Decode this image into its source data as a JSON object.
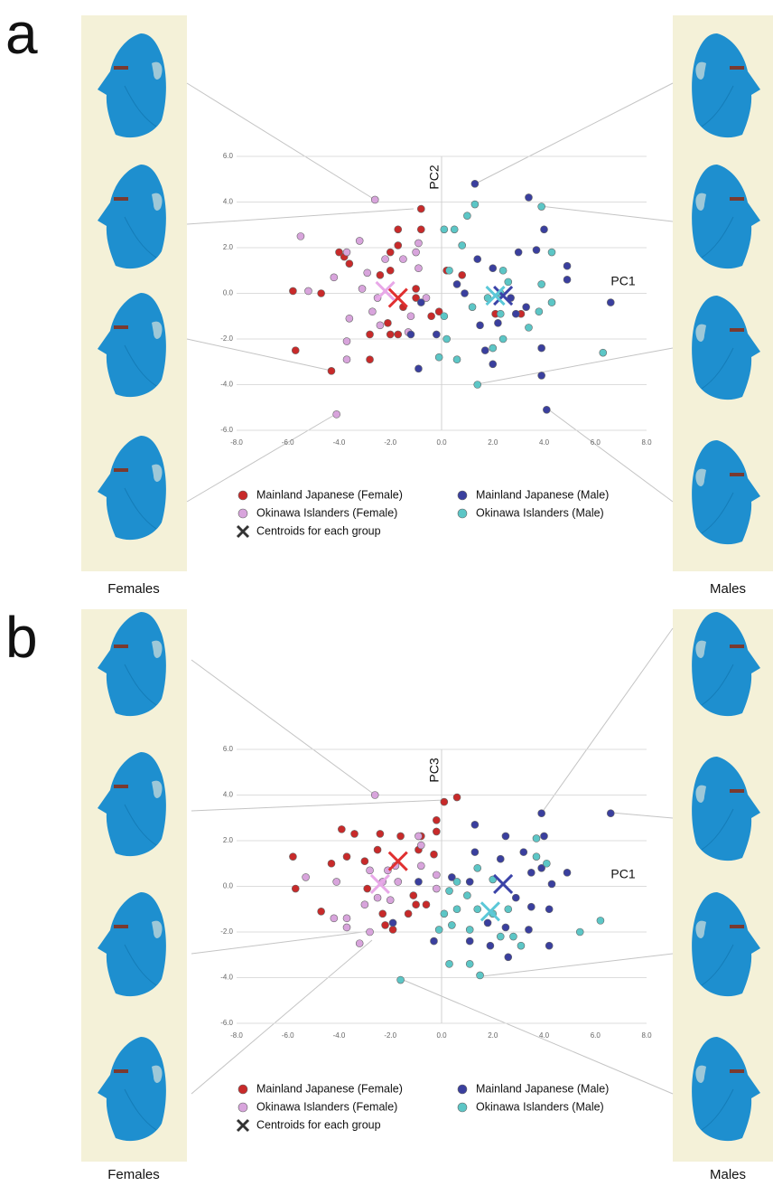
{
  "chart_data": [
    {
      "type": "scatter",
      "panel_label": "a",
      "left_label": "Females",
      "right_label": "Males",
      "x_label": "PC1",
      "y_label": "PC2",
      "xlim": [
        -8,
        8
      ],
      "ylim": [
        -6,
        6
      ],
      "grid": true,
      "xticks": [
        {
          "value": -8,
          "label": "-8.0"
        },
        {
          "value": -6,
          "label": "-6.0"
        },
        {
          "value": -4,
          "label": "-4.0"
        },
        {
          "value": -2,
          "label": "-2.0"
        },
        {
          "value": 0,
          "label": "0.0"
        },
        {
          "value": 2,
          "label": "2.0"
        },
        {
          "value": 4,
          "label": "4.0"
        },
        {
          "value": 6,
          "label": "6.0"
        },
        {
          "value": 8,
          "label": "8.0"
        }
      ],
      "yticks": [
        {
          "value": 6,
          "label": "6.0"
        },
        {
          "value": 4,
          "label": "4.0"
        },
        {
          "value": 2,
          "label": "2.0"
        },
        {
          "value": 0,
          "label": "0.0"
        },
        {
          "value": -2,
          "label": "-2.0"
        },
        {
          "value": -4,
          "label": "-4.0"
        },
        {
          "value": -6,
          "label": "-6.0"
        }
      ],
      "series": [
        {
          "name": "Mainland Japanese (Female)",
          "color": "#c82a2a",
          "marker": "circle",
          "x": [
            -0.8,
            -1.7,
            -0.8,
            -4.0,
            -3.8,
            -3.6,
            -2.0,
            -1.7,
            -2.0,
            -2.4,
            -5.8,
            -4.7,
            0.2,
            0.8,
            -0.1,
            -0.4,
            -1.0,
            -1.5,
            -2.1,
            -2.0,
            -1.7,
            -2.8,
            -2.8,
            -5.7,
            -4.3,
            2.1,
            3.1,
            -1.0
          ],
          "y": [
            3.7,
            2.8,
            2.8,
            1.8,
            1.6,
            1.3,
            1.8,
            2.1,
            1.0,
            0.8,
            0.1,
            0.0,
            1.0,
            0.8,
            -0.8,
            -1.0,
            -0.2,
            -0.6,
            -1.3,
            -1.8,
            -1.8,
            -1.8,
            -2.9,
            -2.5,
            -3.4,
            -0.9,
            -0.9,
            0.2
          ]
        },
        {
          "name": "Okinawa Islanders (Female)",
          "color": "#d8a4dc",
          "marker": "circle",
          "x": [
            -2.6,
            -5.5,
            -3.7,
            -3.2,
            -4.2,
            -5.2,
            -2.9,
            -2.2,
            -1.5,
            -0.9,
            -1.0,
            -0.9,
            -2.5,
            -2.7,
            -2.4,
            -3.6,
            -3.7,
            -3.7,
            -4.1,
            -1.2,
            -0.6,
            -1.3,
            -3.1
          ],
          "y": [
            4.1,
            2.5,
            1.8,
            2.3,
            0.7,
            0.1,
            0.9,
            1.5,
            1.5,
            1.1,
            1.8,
            2.2,
            -0.2,
            -0.8,
            -1.4,
            -1.1,
            -2.1,
            -2.9,
            -5.3,
            -1.0,
            -0.2,
            -1.7,
            0.2
          ]
        },
        {
          "name": "Mainland Japanese (Male)",
          "color": "#3a3f9e",
          "marker": "circle",
          "x": [
            1.3,
            3.4,
            4.0,
            3.7,
            3.0,
            1.4,
            2.0,
            0.6,
            4.9,
            4.9,
            6.6,
            3.3,
            2.7,
            2.9,
            2.2,
            1.5,
            -0.8,
            -0.2,
            -0.9,
            1.7,
            2.0,
            3.9,
            3.9,
            4.1,
            -1.2,
            0.9
          ],
          "y": [
            4.8,
            4.2,
            2.8,
            1.9,
            1.8,
            1.5,
            1.1,
            0.4,
            1.2,
            0.6,
            -0.4,
            -0.6,
            -0.2,
            -0.9,
            -1.3,
            -1.4,
            -0.4,
            -1.8,
            -3.3,
            -2.5,
            -3.1,
            -2.4,
            -3.6,
            -5.1,
            -1.8,
            0.0
          ]
        },
        {
          "name": "Okinawa Islanders (Male)",
          "color": "#5cc6c6",
          "marker": "circle",
          "x": [
            1.3,
            0.5,
            1.0,
            0.1,
            3.9,
            0.8,
            4.3,
            2.4,
            2.6,
            3.9,
            2.3,
            1.8,
            4.3,
            3.8,
            0.1,
            1.2,
            2.3,
            3.4,
            2.4,
            2.0,
            0.2,
            0.6,
            -0.1,
            1.4,
            6.3,
            0.3
          ],
          "y": [
            3.9,
            2.8,
            3.4,
            2.8,
            3.8,
            2.1,
            1.8,
            1.0,
            0.5,
            0.4,
            0.0,
            -0.2,
            -0.4,
            -0.8,
            -1.0,
            -0.6,
            -0.9,
            -1.5,
            -2.0,
            -2.4,
            -2.0,
            -2.9,
            -2.8,
            -4.0,
            -2.6,
            1.0
          ]
        },
        {
          "name": "Centroids for each group",
          "color": "#333333",
          "marker": "x",
          "point_colors": [
            "#e03030",
            "#e8a8e8",
            "#3b43a8",
            "#5bc8d8"
          ],
          "x": [
            -1.7,
            -2.2,
            2.4,
            2.1
          ],
          "y": [
            -0.2,
            0.1,
            -0.1,
            -0.1
          ]
        }
      ]
    },
    {
      "type": "scatter",
      "panel_label": "b",
      "left_label": "Females",
      "right_label": "Males",
      "x_label": "PC1",
      "y_label": "PC3",
      "xlim": [
        -8,
        8
      ],
      "ylim": [
        -6,
        6
      ],
      "grid": true,
      "xticks": [
        {
          "value": -8,
          "label": "-8.0"
        },
        {
          "value": -6,
          "label": "-6.0"
        },
        {
          "value": -4,
          "label": "-4.0"
        },
        {
          "value": -2,
          "label": "-2.0"
        },
        {
          "value": 0,
          "label": "0.0"
        },
        {
          "value": 2,
          "label": "2.0"
        },
        {
          "value": 4,
          "label": "4.0"
        },
        {
          "value": 6,
          "label": "6.0"
        },
        {
          "value": 8,
          "label": "8.0"
        }
      ],
      "yticks": [
        {
          "value": 6,
          "label": "6.0"
        },
        {
          "value": 4,
          "label": "4.0"
        },
        {
          "value": 2,
          "label": "2.0"
        },
        {
          "value": 0,
          "label": "0.0"
        },
        {
          "value": -2,
          "label": "-2.0"
        },
        {
          "value": -4,
          "label": "-4.0"
        },
        {
          "value": -6,
          "label": "-6.0"
        }
      ],
      "series": [
        {
          "name": "Mainland Japanese (Female)",
          "color": "#c82a2a",
          "marker": "circle",
          "x": [
            0.1,
            0.6,
            -5.8,
            -3.9,
            -3.4,
            -2.4,
            -1.6,
            -0.8,
            -0.2,
            -0.2,
            -4.3,
            -3.7,
            -2.5,
            -3.0,
            -0.9,
            -0.3,
            -5.7,
            -4.7,
            -2.9,
            -1.1,
            -1.0,
            -0.6,
            -2.3,
            -2.2,
            -1.9,
            -1.3
          ],
          "y": [
            3.7,
            3.9,
            1.3,
            2.5,
            2.3,
            2.3,
            2.2,
            2.2,
            2.9,
            2.4,
            1.0,
            1.3,
            1.6,
            1.1,
            1.6,
            1.4,
            -0.1,
            -1.1,
            -0.1,
            -0.4,
            -0.8,
            -0.8,
            -1.2,
            -1.7,
            -1.9,
            -1.2
          ]
        },
        {
          "name": "Okinawa Islanders (Female)",
          "color": "#d8a4dc",
          "marker": "circle",
          "x": [
            -2.6,
            -5.3,
            -4.1,
            -4.2,
            -3.7,
            -3.7,
            -3.2,
            -2.8,
            -2.8,
            -2.1,
            -2.3,
            -1.7,
            -1.8,
            -0.9,
            -0.8,
            -0.8,
            -0.2,
            -0.2,
            -2.5,
            -2.0,
            -3.0
          ],
          "y": [
            4.0,
            0.4,
            0.2,
            -1.4,
            -1.4,
            -1.8,
            -2.5,
            -2.0,
            0.7,
            0.7,
            0.2,
            0.2,
            0.9,
            2.2,
            1.8,
            0.9,
            0.5,
            -0.1,
            -0.5,
            -0.6,
            -0.8
          ]
        },
        {
          "name": "Mainland Japanese (Male)",
          "color": "#3a3f9e",
          "marker": "circle",
          "x": [
            1.3,
            3.9,
            6.6,
            4.0,
            2.5,
            1.3,
            2.3,
            3.2,
            3.9,
            4.3,
            4.9,
            3.5,
            0.4,
            -0.9,
            1.1,
            2.9,
            3.5,
            4.2,
            1.8,
            2.5,
            3.4,
            1.9,
            2.6,
            1.1,
            -0.3,
            4.2,
            -1.9
          ],
          "y": [
            2.7,
            3.2,
            3.2,
            2.2,
            2.2,
            1.5,
            1.2,
            1.5,
            0.8,
            0.1,
            0.6,
            0.6,
            0.4,
            0.2,
            0.2,
            -0.5,
            -0.9,
            -1.0,
            -1.6,
            -1.8,
            -1.9,
            -2.6,
            -3.1,
            -2.4,
            -2.4,
            -2.6,
            -1.6
          ]
        },
        {
          "name": "Okinawa Islanders (Male)",
          "color": "#5cc6c6",
          "marker": "circle",
          "x": [
            3.7,
            4.1,
            3.7,
            1.4,
            2.0,
            0.6,
            0.3,
            1.0,
            1.4,
            0.6,
            0.1,
            0.4,
            -0.1,
            1.1,
            2.0,
            2.3,
            2.8,
            3.1,
            5.4,
            6.2,
            0.3,
            1.1,
            1.5,
            -1.6,
            2.6
          ],
          "y": [
            2.1,
            1.0,
            1.3,
            0.8,
            0.3,
            0.2,
            -0.2,
            -0.4,
            -1.0,
            -1.0,
            -1.2,
            -1.7,
            -1.9,
            -1.9,
            -1.2,
            -2.2,
            -2.2,
            -2.6,
            -2.0,
            -1.5,
            -3.4,
            -3.4,
            -3.9,
            -4.1,
            -1.0
          ]
        },
        {
          "name": "Centroids for each group",
          "color": "#333333",
          "marker": "x",
          "point_colors": [
            "#e03030",
            "#e8a8e8",
            "#3b43a8",
            "#5bc8d8"
          ],
          "x": [
            -1.7,
            -2.4,
            2.4,
            1.9
          ],
          "y": [
            1.1,
            0.1,
            0.1,
            -1.1
          ]
        }
      ]
    }
  ]
}
